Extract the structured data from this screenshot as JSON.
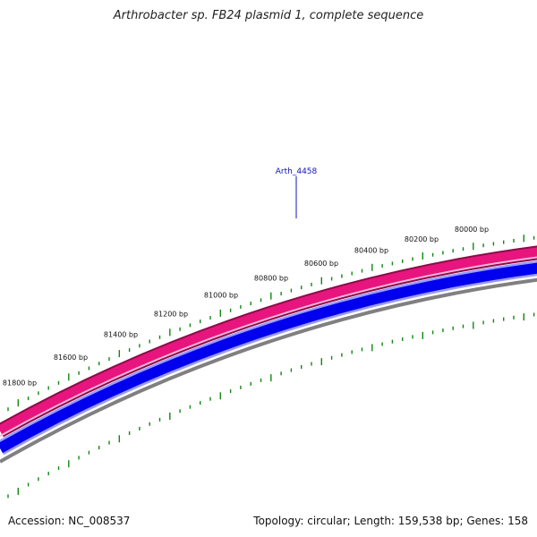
{
  "title": "Arthrobacter sp. FB24 plasmid 1, complete sequence",
  "footer": {
    "accession": "Accession: NC_008537",
    "summary": "Topology: circular; Length: 159,538 bp; Genes: 158"
  },
  "gene_label": "Arth_4458",
  "tick_labels": [
    "81800 bp",
    "81600 bp",
    "81400 bp",
    "81200 bp",
    "81000 bp",
    "80800 bp",
    "80600 bp",
    "80400 bp",
    "80200 bp",
    "80000 bp"
  ],
  "colors": {
    "forward_band": "#e8157f",
    "forward_band_edge": "#8a0d45",
    "reverse_band": "#0000ee",
    "reverse_band_light": "#9a9aff",
    "backbone": "#808080",
    "tick": "#118811",
    "gene_label": "#1010c0"
  }
}
